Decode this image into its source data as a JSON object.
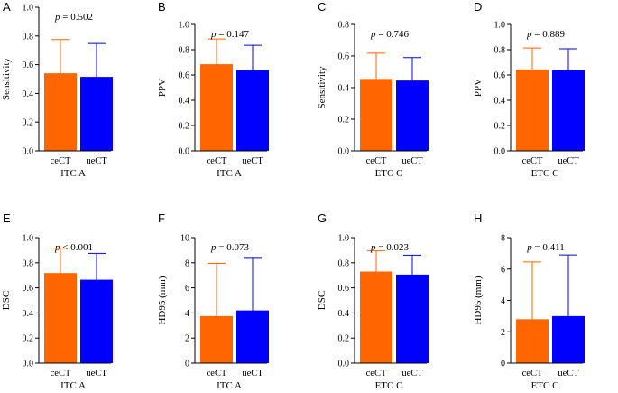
{
  "figure": {
    "colors": {
      "ceCT": "#ff6600",
      "ueCT": "#0000ff",
      "axis": "#000000"
    },
    "groups": [
      "ceCT",
      "ueCT"
    ]
  },
  "chart_data": [
    {
      "type": "bar",
      "panel": "A",
      "title": "",
      "categories": [
        "ceCT",
        "ueCT"
      ],
      "values": [
        0.54,
        0.515
      ],
      "errors": [
        0.235,
        0.233
      ],
      "ylabel": "Sensitivity",
      "xlabel": "ITC A",
      "ylim": [
        0,
        1.0
      ],
      "yticks": [
        0.0,
        0.2,
        0.4,
        0.6,
        0.8,
        1.0
      ],
      "ytick_labels": [
        "0.0",
        "0.2",
        "0.4",
        "0.6",
        "0.8",
        "1.0"
      ],
      "p_label": "p",
      "p_text": "= 0.502"
    },
    {
      "type": "bar",
      "panel": "B",
      "title": "",
      "categories": [
        "ceCT",
        "ueCT"
      ],
      "values": [
        0.685,
        0.638
      ],
      "errors": [
        0.2,
        0.197
      ],
      "ylabel": "PPV",
      "xlabel": "ITC A",
      "ylim": [
        0,
        1.0
      ],
      "yticks": [
        0.0,
        0.2,
        0.4,
        0.6,
        0.8,
        1.0
      ],
      "ytick_labels": [
        "0.0",
        "0.2",
        "0.4",
        "0.6",
        "0.8",
        "1.0"
      ],
      "p_label": "p",
      "p_text": "= 0.147"
    },
    {
      "type": "bar",
      "panel": "C",
      "title": "",
      "categories": [
        "ceCT",
        "ueCT"
      ],
      "values": [
        0.455,
        0.445
      ],
      "errors": [
        0.163,
        0.145
      ],
      "ylabel": "Sensitivity",
      "xlabel": "ETC C",
      "ylim": [
        0,
        0.8
      ],
      "yticks": [
        0.0,
        0.2,
        0.4,
        0.6,
        0.8
      ],
      "ytick_labels": [
        "0.0",
        "0.2",
        "0.4",
        "0.6",
        "0.8"
      ],
      "p_label": "p",
      "p_text": "= 0.746"
    },
    {
      "type": "bar",
      "panel": "D",
      "title": "",
      "categories": [
        "ceCT",
        "ueCT"
      ],
      "values": [
        0.643,
        0.637
      ],
      "errors": [
        0.17,
        0.17
      ],
      "ylabel": "PPV",
      "xlabel": "ETC C",
      "ylim": [
        0,
        1.0
      ],
      "yticks": [
        0.0,
        0.2,
        0.4,
        0.6,
        0.8,
        1.0
      ],
      "ytick_labels": [
        "0.0",
        "0.2",
        "0.4",
        "0.6",
        "0.8",
        "1.0"
      ],
      "p_label": "p",
      "p_text": "= 0.889"
    },
    {
      "type": "bar",
      "panel": "E",
      "title": "",
      "categories": [
        "ceCT",
        "ueCT"
      ],
      "values": [
        0.718,
        0.665
      ],
      "errors": [
        0.198,
        0.21
      ],
      "ylabel": "DSC",
      "xlabel": "ITC A",
      "ylim": [
        0,
        1.0
      ],
      "yticks": [
        0.0,
        0.2,
        0.4,
        0.6,
        0.8,
        1.0
      ],
      "ytick_labels": [
        "0.0",
        "0.2",
        "0.4",
        "0.6",
        "0.8",
        "1.0"
      ],
      "p_label": "p",
      "p_text": "< 0.001"
    },
    {
      "type": "bar",
      "panel": "F",
      "title": "",
      "categories": [
        "ceCT",
        "ueCT"
      ],
      "values": [
        3.75,
        4.2
      ],
      "errors": [
        4.2,
        4.15
      ],
      "ylabel": "HD95 (mm)",
      "xlabel": "ITC A",
      "ylim": [
        0,
        10
      ],
      "yticks": [
        0,
        2,
        4,
        6,
        8,
        10
      ],
      "ytick_labels": [
        "0",
        "2",
        "4",
        "6",
        "8",
        "10"
      ],
      "p_label": "p",
      "p_text": "= 0.073"
    },
    {
      "type": "bar",
      "panel": "G",
      "title": "",
      "categories": [
        "ceCT",
        "ueCT"
      ],
      "values": [
        0.73,
        0.706
      ],
      "errors": [
        0.165,
        0.155
      ],
      "ylabel": "DSC",
      "xlabel": "ETC C",
      "ylim": [
        0,
        1.0
      ],
      "yticks": [
        0.0,
        0.2,
        0.4,
        0.6,
        0.8,
        1.0
      ],
      "ytick_labels": [
        "0.0",
        "0.2",
        "0.4",
        "0.6",
        "0.8",
        "1.0"
      ],
      "p_label": "p",
      "p_text": "= 0.023"
    },
    {
      "type": "bar",
      "panel": "H",
      "title": "",
      "categories": [
        "ceCT",
        "ueCT"
      ],
      "values": [
        2.8,
        3.0
      ],
      "errors": [
        3.65,
        3.9
      ],
      "ylabel": "HD95 (mm)",
      "xlabel": "ETC C",
      "ylim": [
        0,
        8
      ],
      "yticks": [
        0,
        2,
        4,
        6,
        8
      ],
      "ytick_labels": [
        "0",
        "2",
        "4",
        "6",
        "8"
      ],
      "p_label": "p",
      "p_text": "= 0.411"
    }
  ]
}
